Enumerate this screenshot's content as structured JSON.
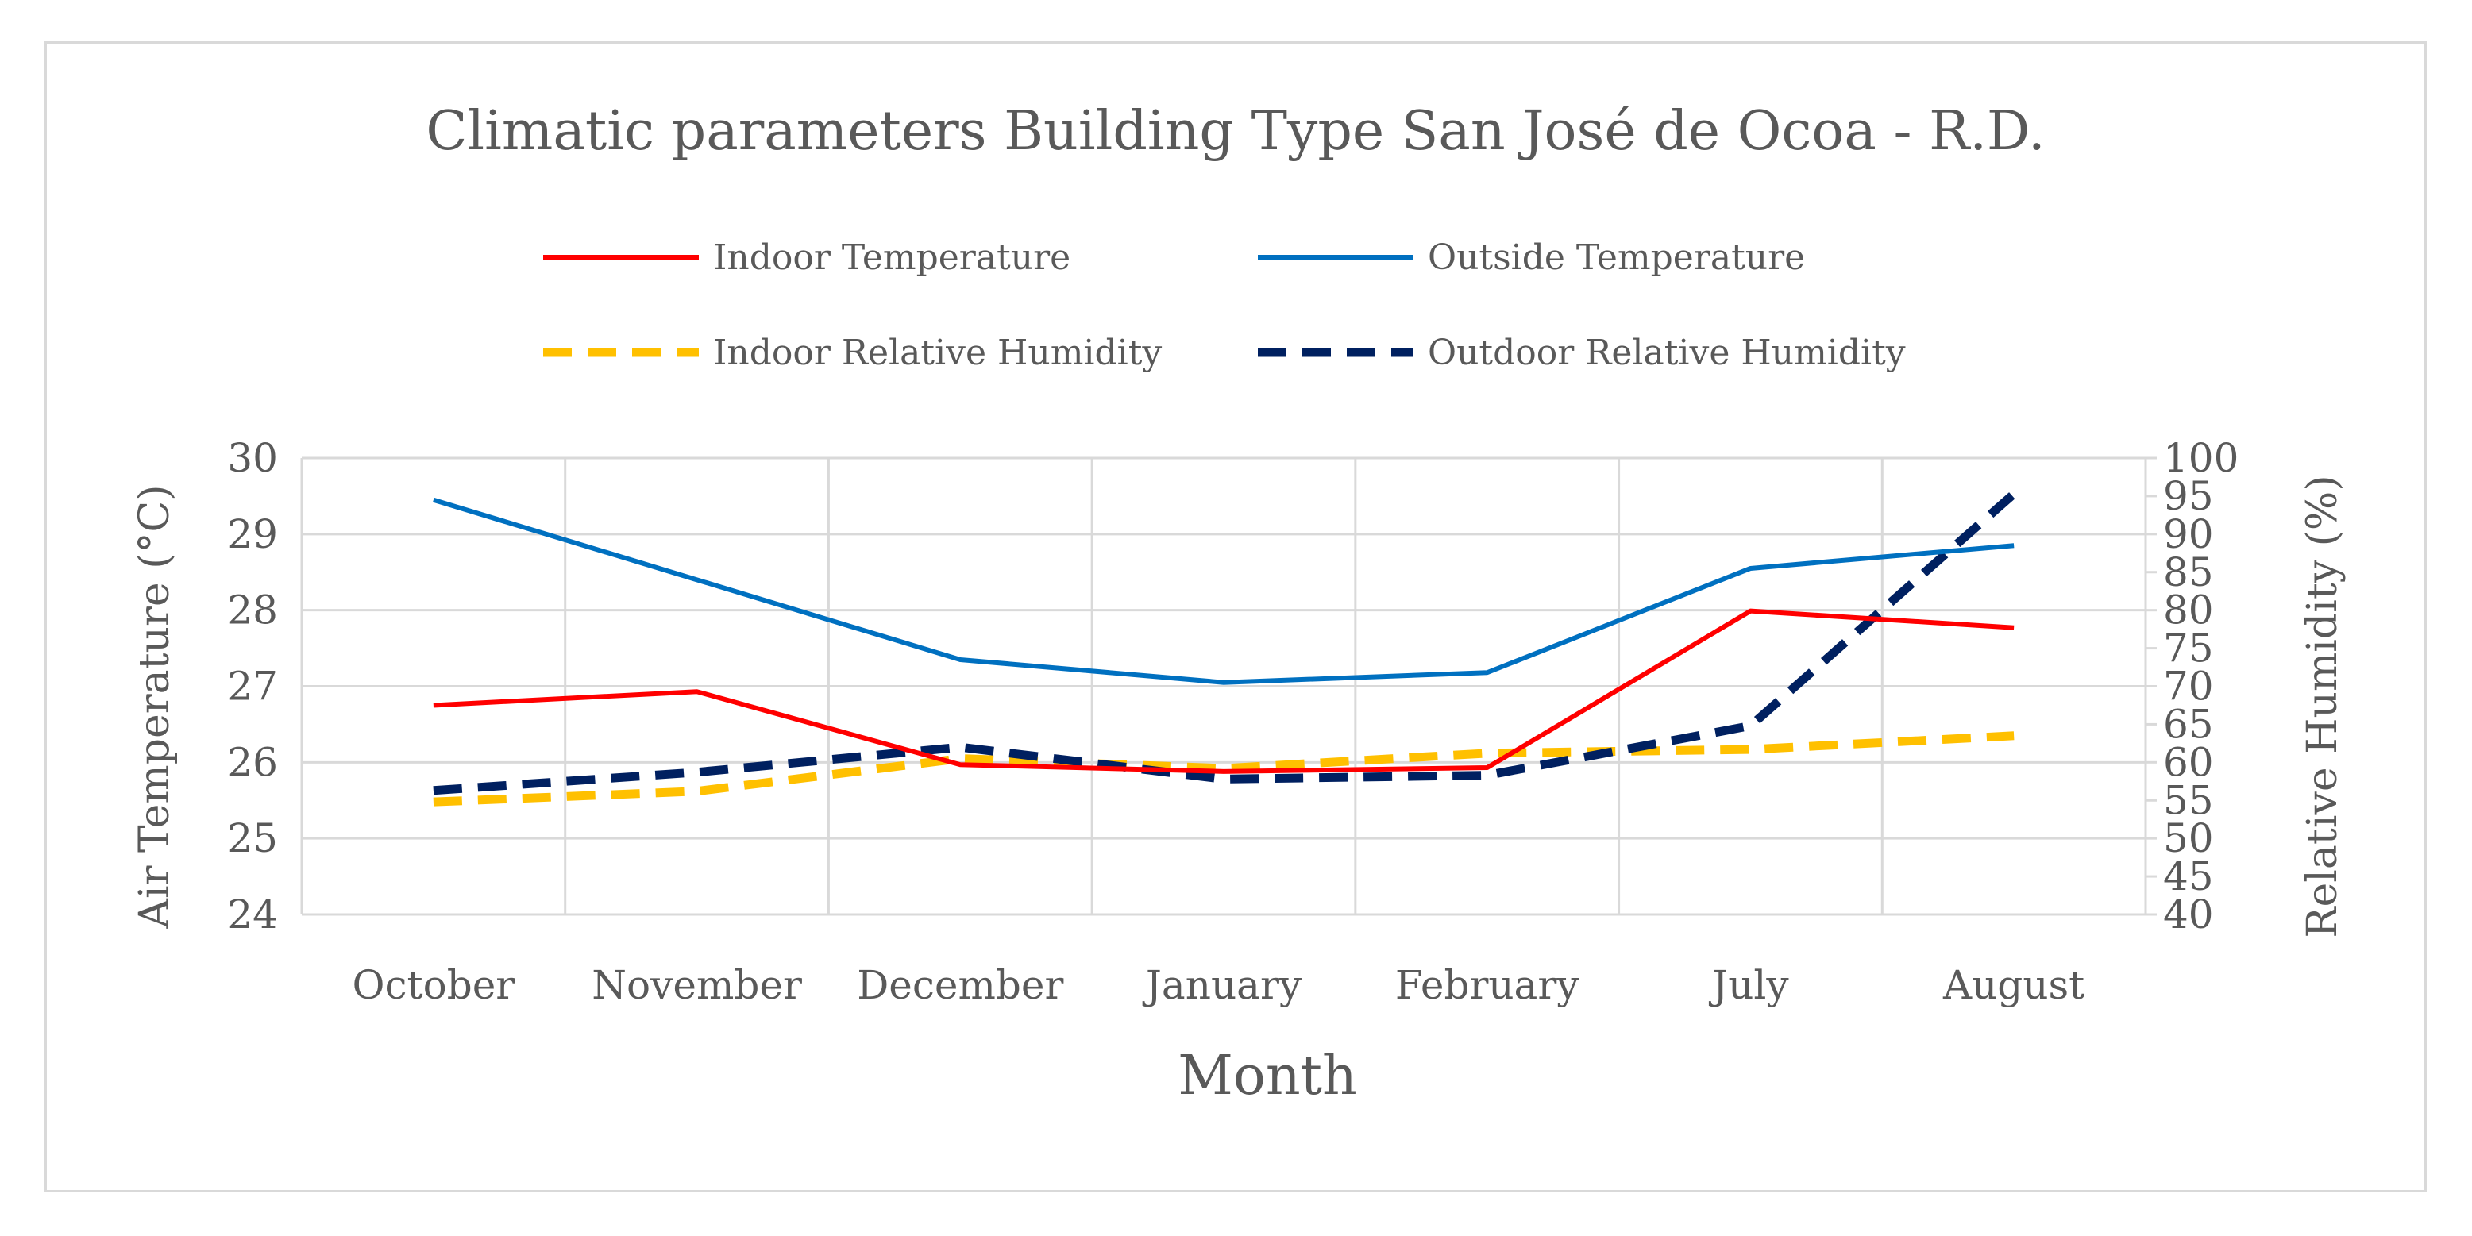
{
  "chart_data": {
    "type": "line",
    "title": "Climatic parameters Building Type San José de Ocoa - R.D.",
    "xlabel": "Month",
    "ylabel": "Air Temperature (°C)",
    "y2label": "Relative Humidity (%)",
    "categories": [
      "October",
      "November",
      "December",
      "January",
      "February",
      "July",
      "August"
    ],
    "ylim": [
      24,
      30
    ],
    "yticks": [
      "24",
      "25",
      "26",
      "27",
      "28",
      "29",
      "30"
    ],
    "y2lim": [
      40,
      100
    ],
    "y2ticks": [
      "40",
      "45",
      "50",
      "55",
      "60",
      "65",
      "70",
      "75",
      "80",
      "85",
      "90",
      "95",
      "100"
    ],
    "grid": true,
    "legend_position": "top",
    "series": [
      {
        "name": "Indoor Temperature",
        "axis": "left",
        "style": "solid",
        "color": "#ff0000",
        "values": [
          26.75,
          26.93,
          25.97,
          25.88,
          25.93,
          27.99,
          27.77
        ]
      },
      {
        "name": "Outside Temperature",
        "axis": "left",
        "style": "solid",
        "color": "#0070c0",
        "values": [
          29.45,
          28.4,
          27.35,
          27.05,
          27.18,
          28.55,
          28.85
        ]
      },
      {
        "name": "Indoor Relative Humidity",
        "axis": "right",
        "style": "dashed",
        "color": "#ffc000",
        "values": [
          54.8,
          56.2,
          60.5,
          59.2,
          61.2,
          61.7,
          63.5
        ]
      },
      {
        "name": "Outdoor Relative Humidity",
        "axis": "right",
        "style": "dashed",
        "color": "#002060",
        "values": [
          56.3,
          58.7,
          62.0,
          57.8,
          58.3,
          64.8,
          95.3
        ]
      }
    ]
  }
}
